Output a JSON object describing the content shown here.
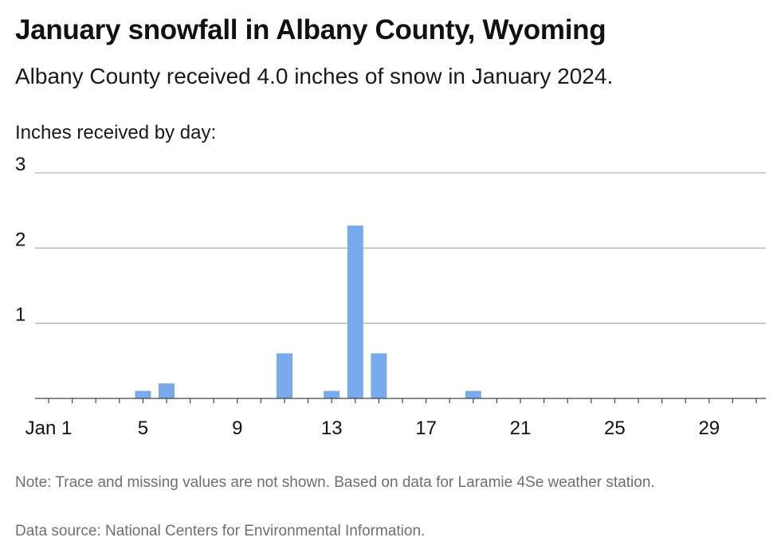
{
  "title": "January snowfall in Albany County, Wyoming",
  "subtitle": "Albany County received 4.0 inches of snow in January 2024.",
  "y_caption": "Inches received by day:",
  "note": "Note: Trace and missing values are not shown. Based on data for Laramie 4Se weather station.",
  "source": "Data source: National Centers for Environmental Information.",
  "colors": {
    "bar": "#7aaaee",
    "grid": "#b3b3b3",
    "axis": "#444444"
  },
  "chart_data": {
    "type": "bar",
    "title": "January snowfall in Albany County, Wyoming",
    "subtitle": "Albany County received 4.0 inches of snow in January 2024.",
    "ylabel": "Inches received by day:",
    "xlabel": "",
    "x": [
      1,
      2,
      3,
      4,
      5,
      6,
      7,
      8,
      9,
      10,
      11,
      12,
      13,
      14,
      15,
      16,
      17,
      18,
      19,
      20,
      21,
      22,
      23,
      24,
      25,
      26,
      27,
      28,
      29,
      30,
      31
    ],
    "values": [
      0,
      0,
      0,
      0,
      0.1,
      0.2,
      0,
      0,
      0,
      0,
      0.6,
      0,
      0.1,
      2.3,
      0.6,
      0,
      0,
      0,
      0.1,
      0,
      0,
      0,
      0,
      0,
      0,
      0,
      0,
      0,
      0,
      0,
      0
    ],
    "xticks": [
      1,
      5,
      9,
      13,
      17,
      21,
      25,
      29
    ],
    "xtick_labels": [
      "Jan 1",
      "5",
      "9",
      "13",
      "17",
      "21",
      "25",
      "29"
    ],
    "yticks": [
      1,
      2,
      3
    ],
    "ytick_labels": [
      "1",
      "2",
      "3"
    ],
    "ylim": [
      0,
      3
    ],
    "xlim": [
      0.5,
      31.5
    ],
    "grid": true,
    "legend": "none"
  }
}
